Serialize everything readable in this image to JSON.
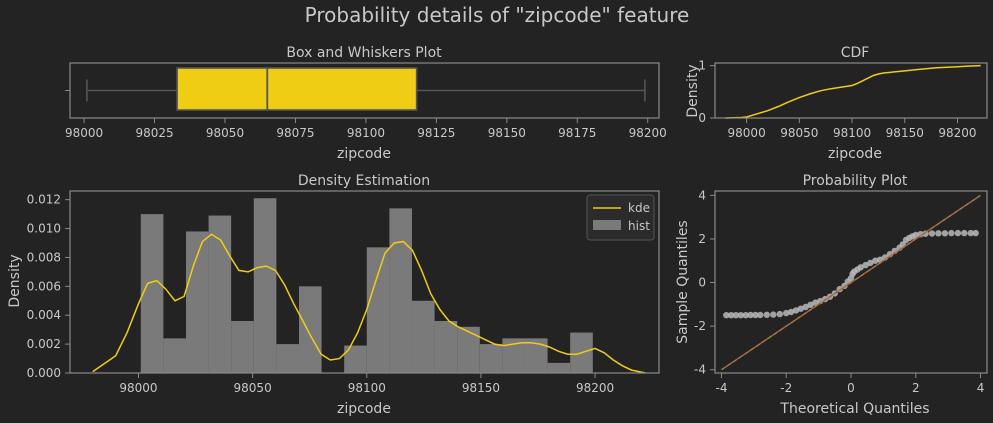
{
  "figure": {
    "title": "Probability details of \"zipcode\" feature"
  },
  "colors": {
    "background": "#232323",
    "frame": "#8a8a8a",
    "text": "#c8c8c8",
    "accent": "#f0cd15",
    "hist": "#7a7a7a",
    "qq_points": "#b9b9b9",
    "qq_line": "#c0503c"
  },
  "chart_data": [
    {
      "type": "box",
      "title": "Box and Whiskers Plot",
      "xlabel": "zipcode",
      "ylabel": "",
      "xlim": [
        97995,
        98204
      ],
      "xticks": [
        98000,
        98025,
        98050,
        98075,
        98100,
        98125,
        98150,
        98175,
        98200
      ],
      "min": 98001,
      "q1": 98033,
      "median": 98065,
      "q3": 98118,
      "max": 98199
    },
    {
      "type": "line",
      "title": "CDF",
      "xlabel": "zipcode",
      "ylabel": "Density",
      "xlim": [
        97970,
        98228
      ],
      "ylim": [
        0,
        1.05
      ],
      "xticks": [
        98000,
        98050,
        98100,
        98150,
        98200
      ],
      "yticks": [
        0,
        1
      ],
      "x": [
        97980,
        97995,
        98000,
        98010,
        98020,
        98030,
        98040,
        98050,
        98060,
        98070,
        98080,
        98090,
        98100,
        98105,
        98110,
        98115,
        98120,
        98125,
        98130,
        98140,
        98150,
        98160,
        98170,
        98180,
        98190,
        98200,
        98210,
        98222
      ],
      "y": [
        0,
        0.01,
        0.02,
        0.08,
        0.14,
        0.22,
        0.31,
        0.39,
        0.46,
        0.52,
        0.56,
        0.59,
        0.62,
        0.66,
        0.71,
        0.76,
        0.81,
        0.84,
        0.86,
        0.88,
        0.9,
        0.92,
        0.94,
        0.96,
        0.97,
        0.98,
        0.99,
        1.0
      ]
    },
    {
      "type": "bar",
      "title": "Density Estimation",
      "xlabel": "zipcode",
      "ylabel": "Density",
      "xlim": [
        97970,
        98228
      ],
      "ylim": [
        0,
        0.0126
      ],
      "xticks": [
        98000,
        98050,
        98100,
        98150,
        98200
      ],
      "yticks": [
        0.0,
        0.002,
        0.004,
        0.006,
        0.008,
        0.01,
        0.012
      ],
      "legend": "top-right",
      "series": [
        {
          "name": "hist",
          "bin_edges": [
            98001,
            98010.9,
            98020.8,
            98030.7,
            98040.6,
            98050.5,
            98060.4,
            98070.3,
            98080.2,
            98090.1,
            98100,
            98109.9,
            98119.8,
            98129.7,
            98139.6,
            98149.5,
            98159.4,
            98169.3,
            98179.2,
            98189.1,
            98199
          ],
          "values": [
            0.011,
            0.0024,
            0.0098,
            0.0109,
            0.0036,
            0.0121,
            0.002,
            0.006,
            0.0,
            0.0019,
            0.0087,
            0.0114,
            0.005,
            0.0036,
            0.0032,
            0.002,
            0.0024,
            0.0024,
            0.0007,
            0.0028
          ]
        },
        {
          "name": "kde",
          "x": [
            97980,
            97990,
            97995,
            98000,
            98004,
            98008,
            98012,
            98016,
            98020,
            98024,
            98028,
            98032,
            98036,
            98040,
            98044,
            98048,
            98052,
            98056,
            98060,
            98064,
            98068,
            98072,
            98076,
            98080,
            98084,
            98088,
            98092,
            98096,
            98100,
            98104,
            98108,
            98112,
            98116,
            98120,
            98124,
            98128,
            98132,
            98136,
            98140,
            98144,
            98148,
            98152,
            98156,
            98160,
            98164,
            98168,
            98172,
            98176,
            98180,
            98184,
            98188,
            98192,
            98196,
            98200,
            98204,
            98208,
            98212,
            98216,
            98222
          ],
          "y": [
            0.0001,
            0.0012,
            0.0028,
            0.0048,
            0.0062,
            0.0064,
            0.0058,
            0.005,
            0.0053,
            0.0074,
            0.0091,
            0.0096,
            0.0092,
            0.0081,
            0.0071,
            0.007,
            0.0073,
            0.0074,
            0.0071,
            0.0061,
            0.0048,
            0.0036,
            0.0024,
            0.0013,
            0.0009,
            0.001,
            0.0016,
            0.0028,
            0.0044,
            0.0064,
            0.0083,
            0.009,
            0.0091,
            0.0085,
            0.0071,
            0.0055,
            0.0044,
            0.0036,
            0.0032,
            0.0029,
            0.0026,
            0.0023,
            0.002,
            0.0019,
            0.002,
            0.0021,
            0.0021,
            0.002,
            0.0018,
            0.0015,
            0.0013,
            0.0013,
            0.0015,
            0.0017,
            0.0014,
            0.0009,
            0.0005,
            0.0002,
            0.0
          ]
        }
      ]
    },
    {
      "type": "scatter",
      "title": "Probability Plot",
      "xlabel": "Theoretical Quantiles",
      "ylabel": "Sample Quantiles",
      "xlim": [
        -4.2,
        4.2
      ],
      "ylim": [
        -4.15,
        4.2
      ],
      "xticks": [
        -4,
        -2,
        0,
        2,
        4
      ],
      "yticks": [
        -4,
        -2,
        0,
        2,
        4
      ],
      "points_x": [
        -3.85,
        -3.7,
        -3.55,
        -3.4,
        -3.25,
        -3.1,
        -2.95,
        -2.8,
        -2.6,
        -2.4,
        -2.2,
        -2.0,
        -1.85,
        -1.7,
        -1.55,
        -1.4,
        -1.25,
        -1.1,
        -0.95,
        -0.8,
        -0.65,
        -0.5,
        -0.35,
        -0.2,
        -0.1,
        0.0,
        0.05,
        0.1,
        0.2,
        0.3,
        0.45,
        0.6,
        0.75,
        0.9,
        1.05,
        1.2,
        1.35,
        1.5,
        1.6,
        1.7,
        1.8,
        1.9,
        2.0,
        2.15,
        2.3,
        2.5,
        2.7,
        2.9,
        3.1,
        3.3,
        3.5,
        3.7,
        3.85
      ],
      "points_y": [
        -1.5,
        -1.5,
        -1.5,
        -1.5,
        -1.5,
        -1.49,
        -1.49,
        -1.49,
        -1.48,
        -1.47,
        -1.45,
        -1.4,
        -1.35,
        -1.28,
        -1.2,
        -1.12,
        -1.02,
        -0.92,
        -0.85,
        -0.76,
        -0.65,
        -0.5,
        -0.3,
        -0.15,
        0.05,
        0.2,
        0.4,
        0.5,
        0.6,
        0.7,
        0.8,
        0.9,
        1.0,
        1.05,
        1.15,
        1.3,
        1.45,
        1.6,
        1.75,
        1.95,
        2.05,
        2.12,
        2.18,
        2.22,
        2.24,
        2.25,
        2.26,
        2.26,
        2.27,
        2.27,
        2.27,
        2.27,
        2.27
      ],
      "fit_line": {
        "slope": 1.0,
        "intercept": 0.0
      }
    }
  ]
}
